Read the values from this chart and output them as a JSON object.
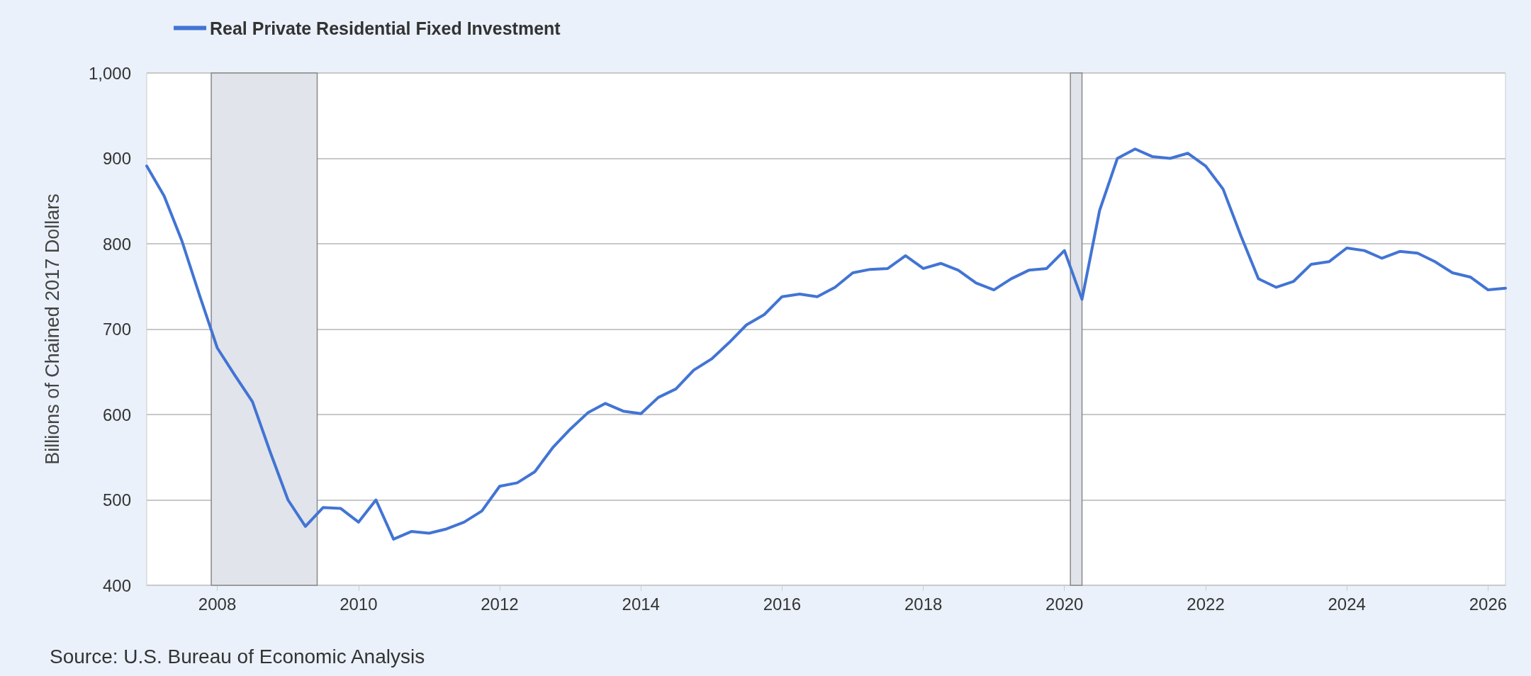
{
  "chart_data": {
    "type": "line",
    "ylabel": "Billions of Chained 2017 Dollars",
    "x": [
      "2007-01-01",
      "2007-04-01",
      "2007-07-01",
      "2007-10-01",
      "2008-01-01",
      "2008-04-01",
      "2008-07-01",
      "2008-10-01",
      "2009-01-01",
      "2009-04-01",
      "2009-07-01",
      "2009-10-01",
      "2010-01-01",
      "2010-04-01",
      "2010-07-01",
      "2010-10-01",
      "2011-01-01",
      "2011-04-01",
      "2011-07-01",
      "2011-10-01",
      "2012-01-01",
      "2012-04-01",
      "2012-07-01",
      "2012-10-01",
      "2013-01-01",
      "2013-04-01",
      "2013-07-01",
      "2013-10-01",
      "2014-01-01",
      "2014-04-01",
      "2014-07-01",
      "2014-10-01",
      "2015-01-01",
      "2015-04-01",
      "2015-07-01",
      "2015-10-01",
      "2016-01-01",
      "2016-04-01",
      "2016-07-01",
      "2016-10-01",
      "2017-01-01",
      "2017-04-01",
      "2017-07-01",
      "2017-10-01",
      "2018-01-01",
      "2018-04-01",
      "2018-07-01",
      "2018-10-01",
      "2019-01-01",
      "2019-04-01",
      "2019-07-01",
      "2019-10-01",
      "2020-01-01",
      "2020-04-01",
      "2020-07-01",
      "2020-10-01",
      "2021-01-01",
      "2021-04-01",
      "2021-07-01",
      "2021-10-01",
      "2022-01-01",
      "2022-04-01",
      "2022-07-01",
      "2022-10-01",
      "2023-01-01",
      "2023-04-01",
      "2023-07-01",
      "2023-10-01",
      "2024-01-01",
      "2024-04-01",
      "2024-07-01",
      "2024-10-01",
      "2025-01-01",
      "2025-04-01",
      "2025-07-01",
      "2025-10-01",
      "2026-01-01",
      "2026-04-01"
    ],
    "series": [
      {
        "name": "Real Private Residential Fixed Investment",
        "color": "#4274d4",
        "values": [
          891,
          856,
          804,
          740,
          678,
          646,
          615,
          556,
          500,
          469,
          491,
          490,
          474,
          500,
          454,
          463,
          461,
          466,
          474,
          487,
          516,
          520,
          533,
          561,
          583,
          602,
          613,
          604,
          601,
          620,
          630,
          652,
          665,
          684,
          705,
          717,
          738,
          741,
          738,
          749,
          766,
          770,
          771,
          786,
          771,
          777,
          769,
          754,
          746,
          759,
          769,
          771,
          792,
          735,
          839,
          900,
          911,
          902,
          900,
          906,
          891,
          864,
          810,
          759,
          749,
          756,
          776,
          779,
          795,
          792,
          783,
          791,
          789,
          779,
          766,
          761,
          746,
          748
        ]
      }
    ],
    "xlim": [
      "2007-01-01",
      "2026-04-01"
    ],
    "xticks": [
      "2008",
      "2010",
      "2012",
      "2014",
      "2016",
      "2018",
      "2020",
      "2022",
      "2024",
      "2026"
    ],
    "ylim": [
      400,
      1000
    ],
    "yticks": [
      400,
      500,
      600,
      700,
      800,
      900,
      {
        "value": 1000,
        "label": "1,000"
      }
    ],
    "bands": [
      {
        "axis": "x",
        "from": "2007-12-01",
        "to": "2009-06-01",
        "color": "#e1e4ea"
      },
      {
        "axis": "x",
        "from": "2020-02-01",
        "to": "2020-04-01",
        "color": "#e1e4ea"
      }
    ],
    "grid": "y",
    "legend": "top left",
    "marker": "none",
    "line_style": "solid",
    "annotations": [
      "Source: U.S. Bureau of Economic Analysis"
    ]
  }
}
